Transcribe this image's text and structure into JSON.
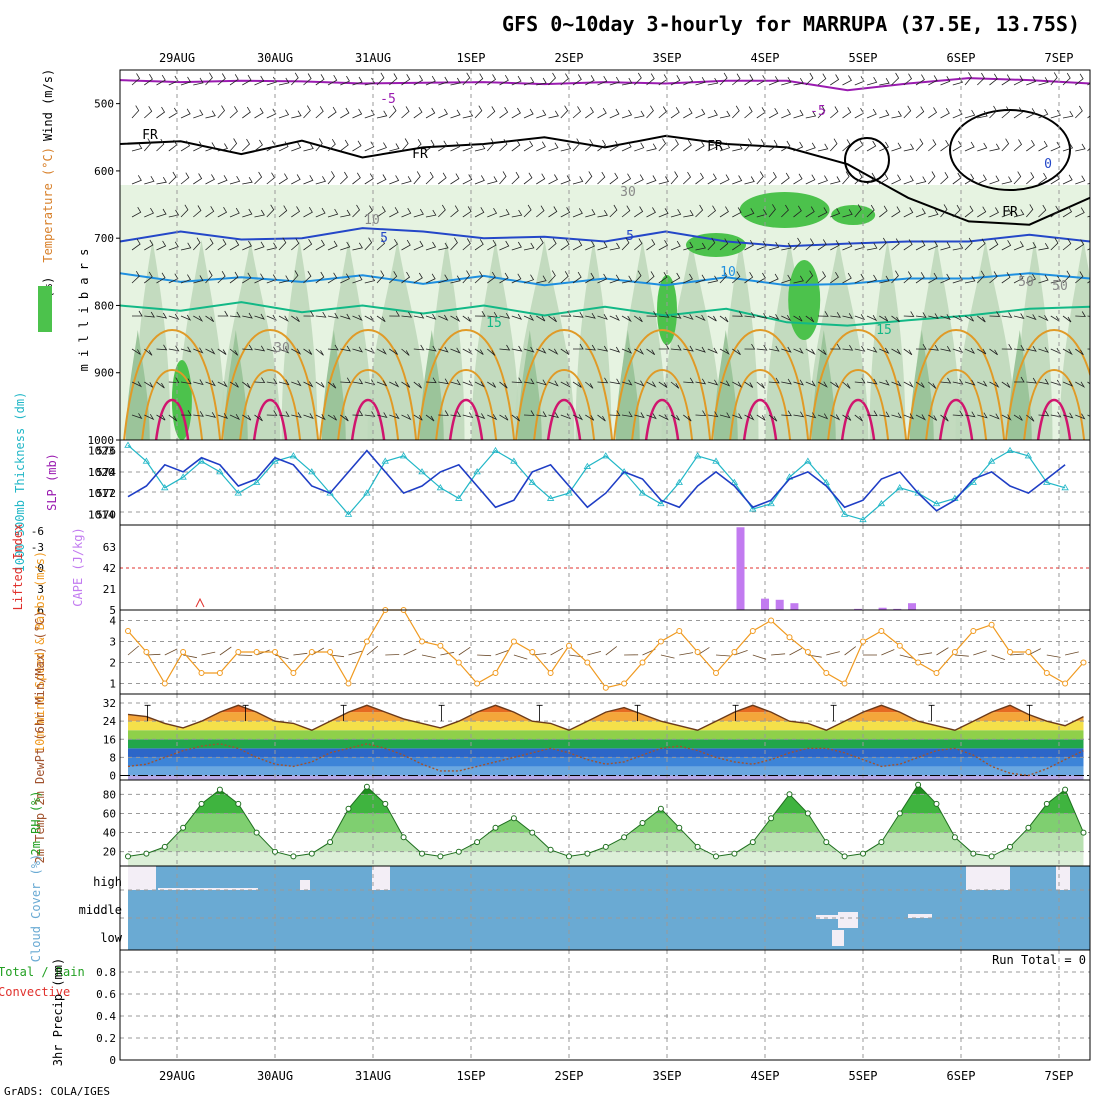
{
  "title": "GFS 0~10day 3-hourly for MARRUPA (37.5E, 13.75S)",
  "footer": "GrADS: COLA/IGES",
  "dates": [
    "29AUG",
    "30AUG",
    "31AUG",
    "1SEP",
    "2SEP",
    "3SEP",
    "4SEP",
    "5SEP",
    "6SEP",
    "7SEP"
  ],
  "colors": {
    "rh_light": "#e6f3e1",
    "rh_mid": "#bfd8bb",
    "rh_dark": "#9bc49a",
    "rh_green": "#4cc24c",
    "temp_purple": "#9a1bb0",
    "temp_blue": "#2447c8",
    "temp_lightblue": "#1e8fe0",
    "temp_green": "#12b886",
    "temp_orange": "#e09a27",
    "temp_red": "#d0156e",
    "thickness": "#22b7c7",
    "slp": "#1f3ec5",
    "cape": "#c27bf0",
    "lifted": "#e0302c",
    "wind": "#f09a20",
    "dewpt": "#a0522d",
    "cloud": "#6aaad3",
    "rh2m": "#22a022"
  },
  "chart_data": [
    {
      "type": "heatmap",
      "panel": "upper-air",
      "ylabel_parts": [
        "RH (%)",
        "Temperature (°C)",
        "Wind (m/s)"
      ],
      "yaxis_label": "m i l l i b a r s",
      "y_ticks": [
        500,
        600,
        700,
        800,
        900,
        1000
      ],
      "ylim": [
        450,
        1000
      ],
      "contour_labels": [
        "-5",
        "-5",
        "FR",
        "FR",
        "FR",
        "FR",
        "5",
        "5",
        "10",
        "15",
        "15",
        "10",
        "30",
        "30",
        "50",
        "50",
        "0"
      ],
      "isotherms_mb": {
        "minus5": [
          465,
          468,
          466,
          467,
          470,
          469,
          468,
          471,
          468,
          470,
          466,
          466,
          480,
          470,
          462,
          465,
          470
        ],
        "freezing": [
          560,
          556,
          575,
          555,
          580,
          565,
          560,
          550,
          565,
          548,
          560,
          565,
          590,
          640,
          675,
          680,
          640
        ],
        "plus5": [
          705,
          690,
          702,
          700,
          685,
          690,
          700,
          698,
          705,
          690,
          705,
          712,
          708,
          705,
          705,
          695,
          705
        ],
        "plus10": [
          752,
          765,
          758,
          765,
          755,
          768,
          756,
          770,
          760,
          770,
          758,
          770,
          768,
          760,
          760,
          752,
          760
        ],
        "plus15": [
          800,
          808,
          795,
          810,
          800,
          812,
          800,
          815,
          802,
          815,
          805,
          825,
          830,
          822,
          815,
          805,
          802
        ]
      }
    },
    {
      "type": "line",
      "panel": "thickness-slp",
      "ylabel_left": "1000-500mb Thickness (dm)",
      "ylabel_right": "SLP (mb)",
      "left_ticks": [
        570,
        572,
        574,
        576
      ],
      "right_ticks": [
        1014,
        1017,
        1020,
        1023
      ],
      "series": [
        {
          "name": "Thickness",
          "values": [
            576.5,
            575,
            572.5,
            573.5,
            575,
            574,
            572,
            573,
            575,
            575.5,
            574,
            572,
            570,
            572,
            575,
            575.5,
            574,
            572.5,
            571.5,
            574,
            576,
            575,
            573,
            571.5,
            572,
            574.5,
            575.5,
            574,
            572,
            571,
            573,
            575.5,
            575,
            573,
            570.5,
            571,
            573.5,
            575,
            573,
            570,
            569.5,
            571,
            572.5,
            572,
            571,
            571.5,
            573,
            575,
            576,
            575.5,
            573,
            572.5
          ]
        },
        {
          "name": "SLP",
          "values": [
            1016.5,
            1018,
            1021,
            1020,
            1022,
            1021,
            1018,
            1019,
            1022,
            1021,
            1018,
            1017,
            1020,
            1023,
            1020,
            1017,
            1018,
            1020,
            1021,
            1018,
            1015,
            1016,
            1020,
            1021,
            1018,
            1015,
            1017,
            1020,
            1019,
            1016,
            1015,
            1018,
            1020,
            1018,
            1015,
            1016,
            1019,
            1020,
            1018,
            1015,
            1016,
            1019,
            1020,
            1017,
            1014.5,
            1016,
            1019,
            1020,
            1018,
            1017,
            1019,
            1021
          ]
        }
      ]
    },
    {
      "type": "bar",
      "panel": "cape-lifted",
      "ylabel_left": "Lifted Index",
      "ylabel_right": "CAPE (J/kg)",
      "left_ticks": [
        "-6",
        "-3",
        "0",
        "3",
        "6"
      ],
      "right_ticks": [
        "5",
        "21",
        "42",
        "63"
      ],
      "series": [
        {
          "name": "CAPE",
          "x_day": [
            6.25,
            6.5,
            6.65,
            6.8,
            7.45,
            7.7,
            7.85,
            8.0
          ],
          "values": [
            78,
            15,
            14,
            11,
            6,
            7,
            6,
            11
          ]
        }
      ]
    },
    {
      "type": "line",
      "panel": "wind10m",
      "ylabel": "10m Wind Speed & Barbs (m/s)",
      "y_ticks": [
        "1",
        "2",
        "3",
        "4"
      ],
      "ylim": [
        0.5,
        4.5
      ],
      "series": [
        {
          "name": "Speed",
          "values": [
            3.5,
            2.5,
            1,
            2.5,
            1.5,
            1.5,
            2.5,
            2.5,
            2.5,
            1.5,
            2.5,
            2.5,
            1,
            3,
            4.5,
            4.5,
            3,
            2.8,
            2,
            1,
            1.5,
            3,
            2.5,
            1.5,
            2.8,
            2,
            0.8,
            1,
            2,
            3,
            3.5,
            2.5,
            1.5,
            2.5,
            3.5,
            4,
            3.2,
            2.5,
            1.5,
            1,
            3,
            3.5,
            2.8,
            2,
            1.5,
            2.5,
            3.5,
            3.8,
            2.5,
            2.5,
            1.5,
            1,
            2
          ]
        }
      ]
    },
    {
      "type": "area",
      "panel": "temp2m",
      "ylabel": "2m Temp 2m DewPt (6hr Min/Max) (°C)",
      "y_ticks": [
        "0",
        "8",
        "16",
        "24",
        "32"
      ],
      "ylim": [
        -2,
        36
      ],
      "series": [
        {
          "name": "Temp",
          "values": [
            27,
            26,
            23,
            21,
            24,
            28,
            31,
            28,
            24,
            23,
            20,
            24,
            28,
            31,
            28,
            25,
            23,
            21,
            24,
            28,
            31,
            28,
            24,
            23,
            20,
            24,
            28,
            30,
            27,
            24,
            22,
            20,
            24,
            28,
            31,
            28,
            24,
            23,
            20,
            24,
            28,
            31,
            28,
            24,
            22,
            20,
            24,
            28,
            31,
            27,
            24,
            22,
            26
          ]
        },
        {
          "name": "DewPt",
          "values": [
            4,
            5,
            8,
            11,
            13,
            14,
            12,
            8,
            5,
            4,
            6,
            10,
            12,
            14,
            12,
            9,
            5,
            2,
            2,
            4,
            6,
            8,
            10,
            12,
            10,
            7,
            5,
            6,
            9,
            12,
            13,
            11,
            8,
            6,
            5,
            7,
            10,
            12,
            12,
            10,
            7,
            4,
            5,
            8,
            11,
            12,
            9,
            4,
            1,
            0,
            3,
            7,
            11
          ]
        }
      ]
    },
    {
      "type": "area",
      "panel": "rh2m",
      "ylabel": "2m RH (%)",
      "y_ticks": [
        "20",
        "40",
        "60",
        "80"
      ],
      "ylim": [
        5,
        95
      ],
      "series": [
        {
          "name": "RH",
          "values": [
            15,
            18,
            25,
            45,
            70,
            85,
            70,
            40,
            20,
            15,
            18,
            30,
            65,
            88,
            70,
            35,
            18,
            15,
            20,
            30,
            45,
            55,
            40,
            22,
            15,
            18,
            25,
            35,
            50,
            65,
            45,
            25,
            15,
            18,
            30,
            55,
            80,
            60,
            30,
            15,
            18,
            30,
            60,
            90,
            70,
            35,
            18,
            15,
            25,
            45,
            70,
            85,
            40
          ]
        }
      ]
    },
    {
      "type": "bar",
      "panel": "cloud",
      "ylabel": "Cloud Cover (%)",
      "levels": [
        "high",
        "middle",
        "low"
      ]
    },
    {
      "type": "bar",
      "panel": "precip",
      "ylabel_parts": [
        "Total / Rain",
        "Convective",
        "3hr Precip (mm)"
      ],
      "y_ticks": [
        "0",
        "0.2",
        "0.4",
        "0.6",
        "0.8"
      ],
      "ylim": [
        0,
        1
      ],
      "run_total_label": "Run Total = 0"
    }
  ]
}
